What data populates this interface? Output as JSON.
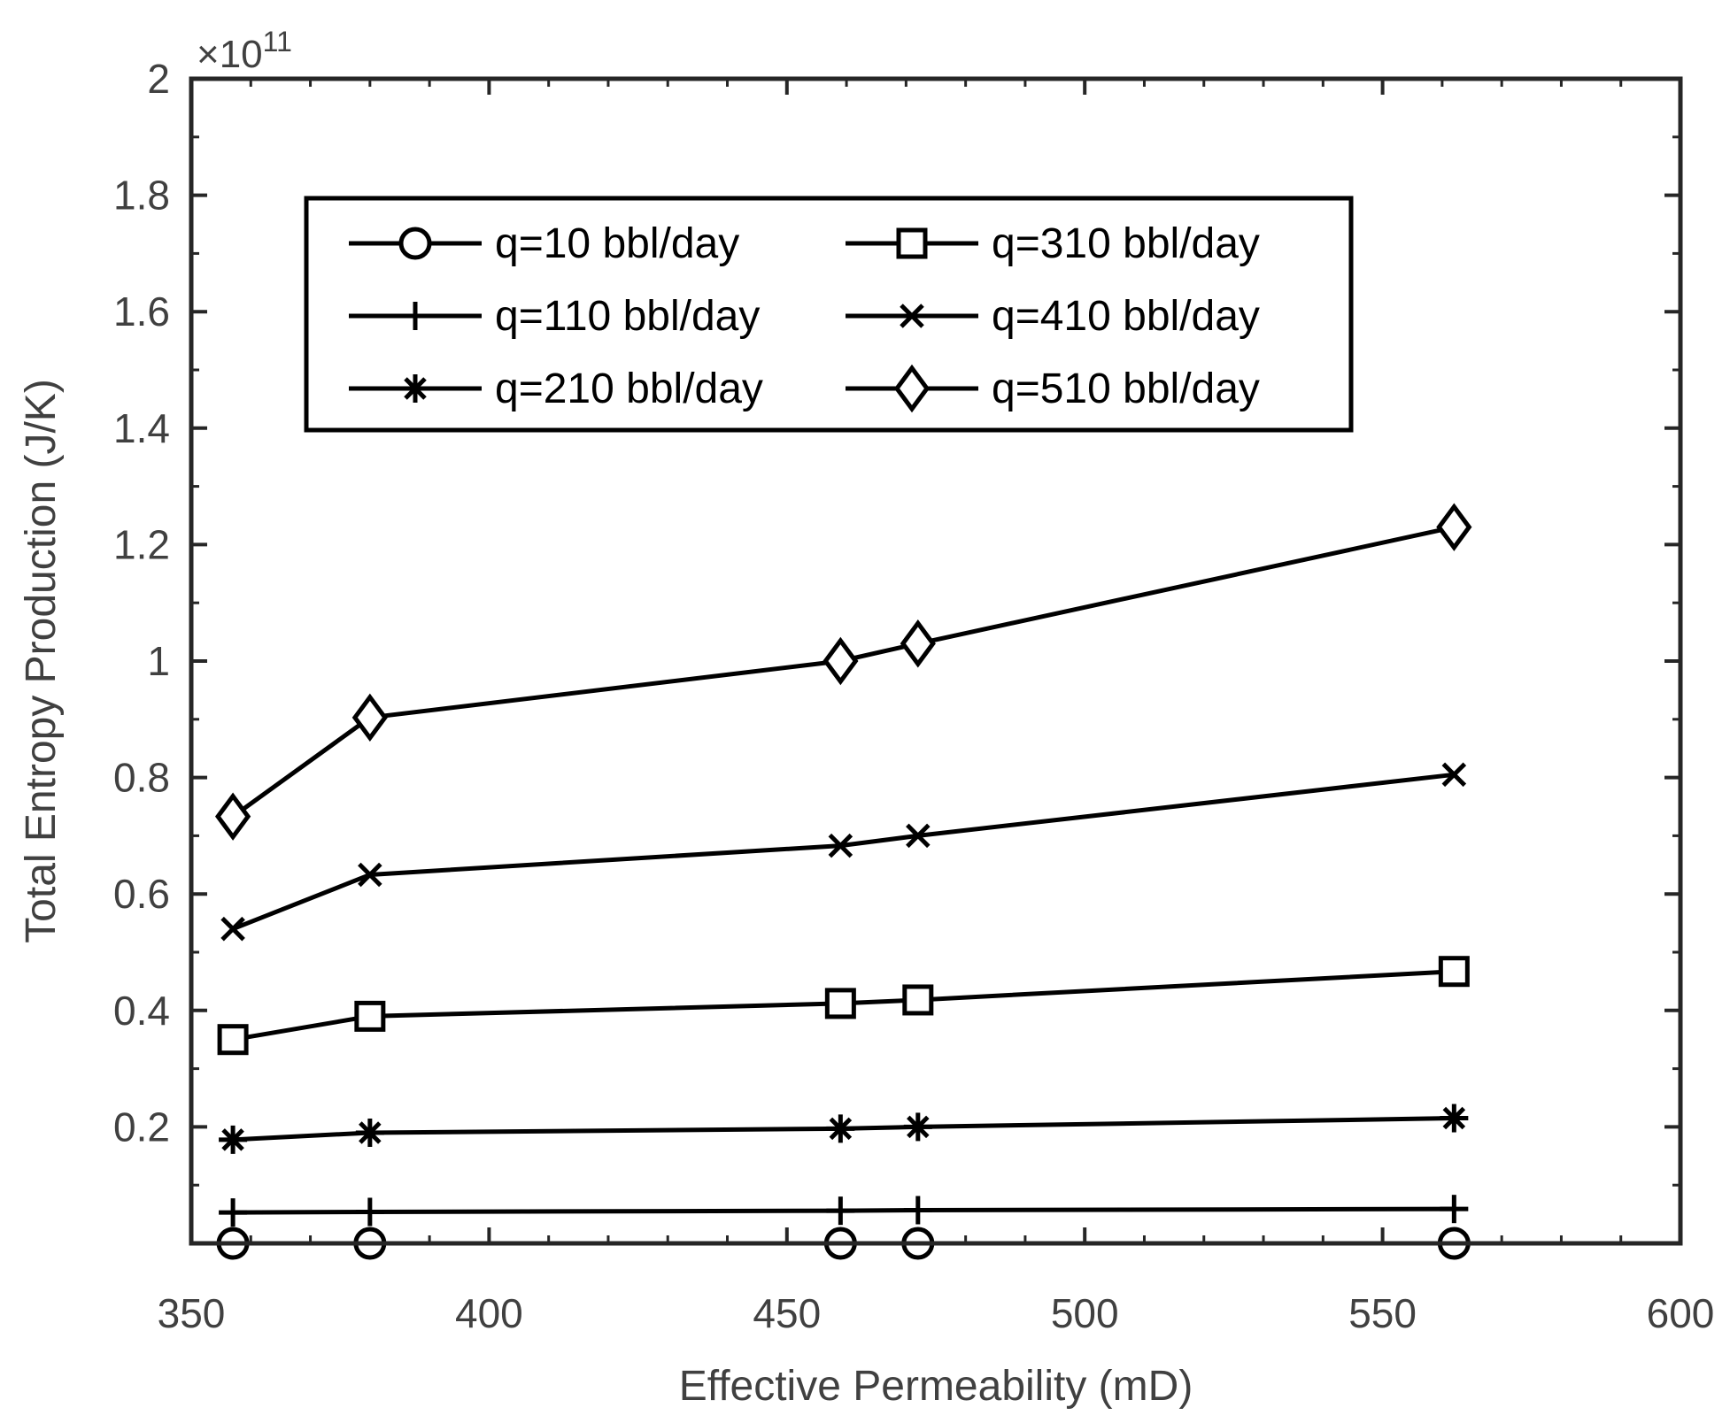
{
  "chart_data": {
    "type": "line",
    "title": "",
    "xlabel": "Effective Permeability (mD)",
    "ylabel": "Total Entropy Production (J/K)",
    "y_multiplier_label": "×10",
    "y_multiplier_exponent": "11",
    "xlim": [
      350,
      600
    ],
    "ylim": [
      0,
      2
    ],
    "x_ticks": [
      350,
      400,
      450,
      500,
      550,
      600
    ],
    "x_tick_labels": [
      "350",
      "400",
      "450",
      "500",
      "550",
      "600"
    ],
    "y_ticks": [
      0.2,
      0.4,
      0.6,
      0.8,
      1.0,
      1.2,
      1.4,
      1.6,
      1.8,
      2.0
    ],
    "y_tick_labels": [
      "0.2",
      "0.4",
      "0.6",
      "0.8",
      "1",
      "1.2",
      "1.4",
      "1.6",
      "1.8",
      "2"
    ],
    "x": [
      357,
      380,
      459,
      472,
      562
    ],
    "series": [
      {
        "name": "q=10 bbl/day",
        "marker": "circle",
        "values": [
          0.0,
          0.0,
          0.0,
          0.0,
          0.0
        ]
      },
      {
        "name": "q=110 bbl/day",
        "marker": "plus",
        "values": [
          0.053,
          0.054,
          0.056,
          0.057,
          0.059
        ]
      },
      {
        "name": "q=210 bbl/day",
        "marker": "star",
        "values": [
          0.178,
          0.19,
          0.197,
          0.2,
          0.215
        ]
      },
      {
        "name": "q=310 bbl/day",
        "marker": "square",
        "values": [
          0.35,
          0.39,
          0.412,
          0.418,
          0.467
        ]
      },
      {
        "name": "q=410 bbl/day",
        "marker": "x",
        "values": [
          0.54,
          0.633,
          0.683,
          0.7,
          0.805
        ]
      },
      {
        "name": "q=510 bbl/day",
        "marker": "diamond",
        "values": [
          0.733,
          0.903,
          1.0,
          1.03,
          1.23
        ]
      }
    ],
    "legend": {
      "placement": "top-center",
      "columns": 2,
      "column_order": [
        [
          0,
          1,
          2
        ],
        [
          3,
          4,
          5
        ]
      ]
    },
    "grid": false,
    "line_color": "#000000",
    "axis_color": "#262626",
    "text_color": "#404040"
  }
}
